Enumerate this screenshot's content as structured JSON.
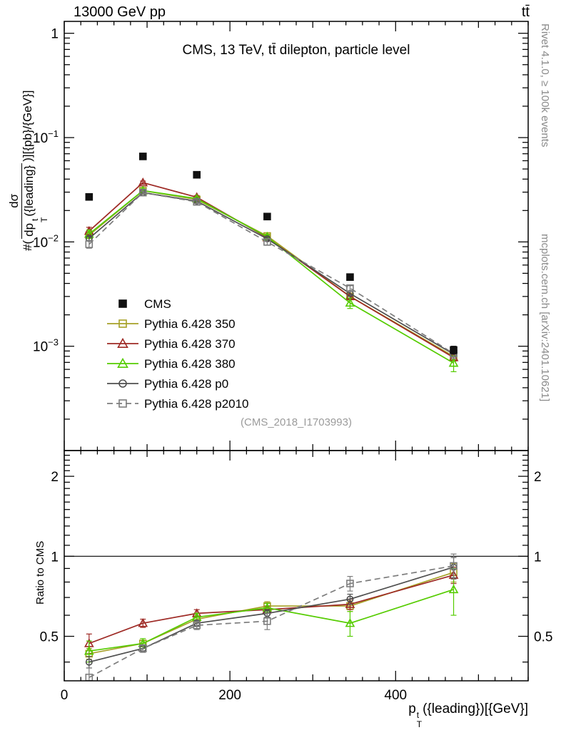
{
  "header": {
    "left": "13000 GeV pp",
    "right": "tt̄"
  },
  "panel_title": "CMS, 13 TeV, tt̄ dilepton, particle level",
  "watermark": "(CMS_2018_I1703993)",
  "side_notes": {
    "top_right": "Rivet 4.1.0, ≥ 100k events",
    "bottom_right": "mcplots.cern.ch [arXiv:2401.10621]"
  },
  "axis_labels": {
    "y_top": {
      "prefix": "#(",
      "frac_num": "dσ",
      "frac_den_main": "dp",
      "frac_den_sup": "t",
      "frac_den_sub": "T",
      "frac_den_rest": "({leading}",
      "suffix": ")][{pb}/{GeV}]"
    },
    "y_ratio": "Ratio to CMS",
    "x": {
      "main": "p",
      "sup": "t",
      "sub": "T",
      "rest": "({leading})[{GeV}]"
    }
  },
  "chart_data": {
    "type": "line",
    "title": "CMS, 13 TeV, ttbar dilepton, particle level",
    "xlabel": "pT^t (leading) [GeV]",
    "ylabel_top": "dsigma/dpT^t (leading) [pb/GeV]",
    "ylabel_ratio": "Ratio to CMS",
    "x": [
      30,
      95,
      160,
      245,
      345,
      470
    ],
    "xlim": [
      0,
      560
    ],
    "xticks": [
      0,
      200,
      400
    ],
    "x_minor_step": 20,
    "top_panel": {
      "yscale": "log",
      "ylim": [
        0.0001,
        1.3
      ],
      "yticks": [
        1,
        0.1,
        0.01,
        0.001
      ]
    },
    "ratio_panel": {
      "yscale": "log",
      "ylim": [
        0.34,
        2.5
      ],
      "yticks": [
        0.5,
        1,
        2
      ],
      "ref_line": 1
    },
    "legend_position": "middle-left",
    "grid": false,
    "series": [
      {
        "id": "cms",
        "name": "CMS",
        "color": "#111111",
        "marker": "square",
        "fill": "filled",
        "line": "none",
        "values": [
          0.027,
          0.066,
          0.044,
          0.0175,
          0.0046,
          0.00092
        ],
        "errors": [
          0.0012,
          0.0018,
          0.0012,
          0.0006,
          0.00025,
          8e-05
        ]
      },
      {
        "id": "py350",
        "name": "Pythia 6.428 350",
        "color": "#a6a127",
        "marker": "square",
        "fill": "open",
        "line": "solid",
        "values": [
          0.0116,
          0.031,
          0.0255,
          0.0114,
          0.003,
          0.0008
        ],
        "errors": [
          0.0006,
          0.0008,
          0.0007,
          0.0005,
          0.00015,
          7e-05
        ],
        "ratio": [
          0.43,
          0.47,
          0.58,
          0.65,
          0.65,
          0.87
        ],
        "ratio_errors": [
          0.02,
          0.012,
          0.015,
          0.025,
          0.03,
          0.07
        ]
      },
      {
        "id": "py370",
        "name": "Pythia 6.428 370",
        "color": "#9e2a25",
        "marker": "triangle",
        "fill": "open",
        "line": "solid",
        "values": [
          0.0127,
          0.037,
          0.0268,
          0.011,
          0.003,
          0.00078
        ],
        "errors": [
          0.0011,
          0.0013,
          0.0009,
          0.0004,
          0.00015,
          6e-05
        ],
        "ratio": [
          0.47,
          0.56,
          0.61,
          0.63,
          0.66,
          0.85
        ],
        "ratio_errors": [
          0.04,
          0.02,
          0.02,
          0.02,
          0.03,
          0.06
        ]
      },
      {
        "id": "py380",
        "name": "Pythia 6.428 380",
        "color": "#55cc00",
        "marker": "triangle",
        "fill": "open",
        "line": "solid",
        "values": [
          0.0119,
          0.031,
          0.026,
          0.0112,
          0.0026,
          0.00069
        ],
        "errors": [
          0.0011,
          0.0013,
          0.0009,
          0.0005,
          0.0003,
          0.00012
        ],
        "ratio": [
          0.44,
          0.47,
          0.59,
          0.64,
          0.56,
          0.75
        ],
        "ratio_errors": [
          0.04,
          0.02,
          0.02,
          0.025,
          0.06,
          0.15
        ]
      },
      {
        "id": "pyp0",
        "name": "Pythia 6.428 p0",
        "color": "#4f4f4f",
        "marker": "circle",
        "fill": "open",
        "line": "solid",
        "values": [
          0.0108,
          0.0297,
          0.0246,
          0.0107,
          0.0032,
          0.00084
        ],
        "errors": [
          0.0005,
          0.0006,
          0.0007,
          0.0004,
          0.00015,
          8e-05
        ],
        "ratio": [
          0.4,
          0.45,
          0.56,
          0.61,
          0.69,
          0.91
        ],
        "ratio_errors": [
          0.02,
          0.012,
          0.015,
          0.02,
          0.03,
          0.08
        ]
      },
      {
        "id": "pyp2010",
        "name": "Pythia 6.428 p2010",
        "color": "#7d7d7d",
        "marker": "square",
        "fill": "open",
        "line": "dashed",
        "values": [
          0.0095,
          0.0297,
          0.0242,
          0.01,
          0.0036,
          0.00085
        ],
        "errors": [
          0.0008,
          0.0009,
          0.0009,
          0.0007,
          0.0002,
          9e-05
        ],
        "ratio": [
          0.35,
          0.45,
          0.55,
          0.57,
          0.79,
          0.92
        ],
        "ratio_errors": [
          0.03,
          0.015,
          0.02,
          0.04,
          0.05,
          0.1
        ]
      }
    ]
  }
}
